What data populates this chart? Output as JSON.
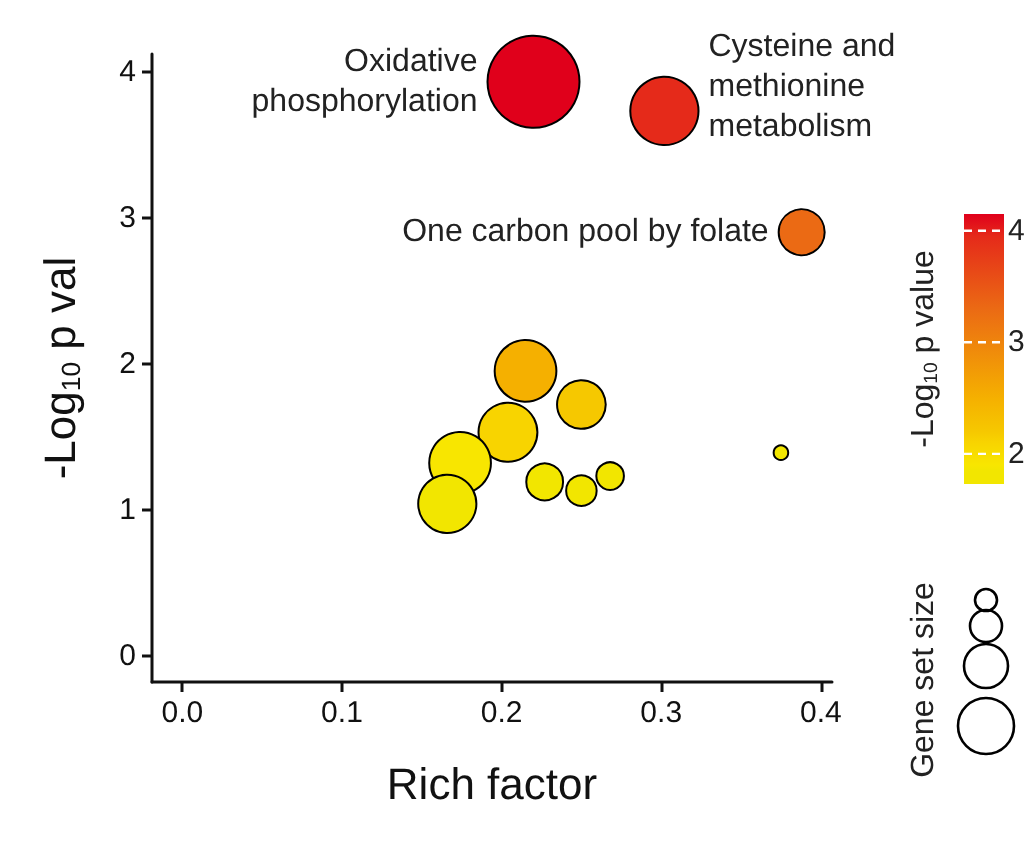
{
  "chart_data": {
    "type": "bubble",
    "xlabel": "Rich factor",
    "ylabel": "-Log$_{10}$ p val",
    "clabel": "-Log$_{10}$ p value",
    "legend_title": "Gene set size",
    "x": [
      0.22,
      0.302,
      0.388,
      0.215,
      0.25,
      0.204,
      0.174,
      0.166,
      0.227,
      0.25,
      0.268,
      0.375
    ],
    "values": [
      3.93,
      3.73,
      2.9,
      1.95,
      1.72,
      1.53,
      1.32,
      1.04,
      1.19,
      1.13,
      1.23,
      1.39
    ],
    "sizes": [
      1,
      0.55,
      0.25,
      0.45,
      0.28,
      0.41,
      0.45,
      0.4,
      0.16,
      0.11,
      0.09,
      0.025
    ],
    "cvalues": [
      4.15,
      3.95,
      3.3,
      2.5,
      2.2,
      2.1,
      1.9,
      1.85,
      1.85,
      1.85,
      1.85,
      1.85
    ],
    "colors": [
      "#e0001b",
      "#e52a1a",
      "#eb6a14",
      "#f5b000",
      "#f6c800",
      "#f8d400",
      "#f8e600",
      "#f2e600",
      "#f2e600",
      "#f2e600",
      "#f2e600",
      "#f2e600"
    ],
    "clim": [
      1.73,
      4.15
    ],
    "cticks": [
      2,
      3,
      4
    ],
    "xlim": [
      -0.019,
      0.407
    ],
    "xticks": [
      {
        "value": 0,
        "label": "0.0"
      },
      0.1,
      0.2,
      0.3,
      0.4
    ],
    "ylim": [
      -0.18,
      4.12
    ],
    "yticks": [
      0,
      1,
      2,
      3,
      4
    ],
    "annotations": [
      {
        "text": "Oxidative\nphosphorylation",
        "x": 0.22,
        "y": 3.93
      },
      {
        "text": "Cysteine and\nmethionine\nmetabolism",
        "x": 0.302,
        "y": 3.73
      },
      {
        "text": "One carbon pool by folate",
        "x": 0.388,
        "y": 2.9
      }
    ]
  }
}
